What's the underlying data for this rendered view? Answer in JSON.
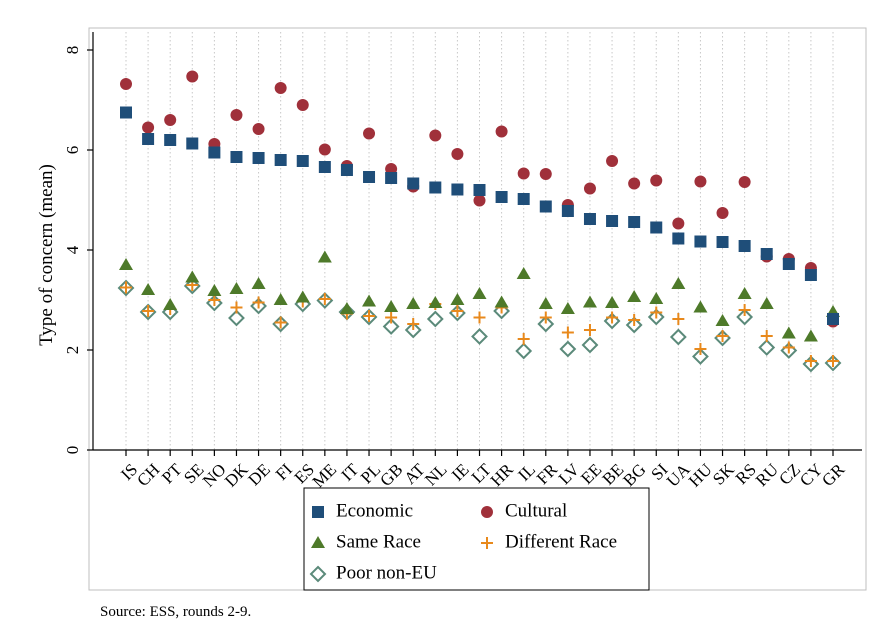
{
  "chart_data": {
    "type": "scatter",
    "ylabel": "Type of concern (mean)",
    "xlabel": "",
    "ylim": [
      0,
      8
    ],
    "yticks": [
      0,
      2,
      4,
      6,
      8
    ],
    "grid": "vertical dotted lines at each country",
    "legend_placement": "bottom",
    "categories": [
      "IS",
      "CH",
      "PT",
      "SE",
      "NO",
      "DK",
      "DE",
      "FI",
      "ES",
      "ME",
      "IT",
      "PL",
      "GB",
      "AT",
      "NL",
      "IE",
      "LT",
      "HR",
      "IL",
      "FR",
      "LV",
      "EE",
      "BE",
      "BG",
      "SI",
      "UA",
      "HU",
      "SK",
      "RS",
      "RU",
      "CZ",
      "CY",
      "GR"
    ],
    "series": [
      {
        "name": "Economic",
        "marker": "square",
        "color": "#1f4e79",
        "values": [
          6.75,
          6.22,
          6.2,
          6.13,
          5.95,
          5.86,
          5.84,
          5.8,
          5.78,
          5.66,
          5.6,
          5.46,
          5.44,
          5.33,
          5.25,
          5.21,
          5.2,
          5.06,
          5.02,
          4.87,
          4.78,
          4.62,
          4.58,
          4.56,
          4.45,
          4.23,
          4.17,
          4.16,
          4.08,
          3.92,
          3.72,
          3.5,
          2.62
        ]
      },
      {
        "name": "Cultural",
        "marker": "circle",
        "color": "#a0303a",
        "values": [
          7.32,
          6.45,
          6.6,
          7.47,
          6.12,
          6.7,
          6.42,
          7.24,
          6.9,
          6.01,
          5.68,
          6.33,
          5.62,
          5.27,
          6.29,
          5.92,
          4.99,
          6.37,
          5.53,
          5.52,
          4.9,
          5.23,
          5.78,
          5.33,
          5.39,
          4.53,
          5.37,
          4.74,
          5.36,
          3.87,
          3.82,
          3.64,
          2.57
        ]
      },
      {
        "name": "Same Race",
        "marker": "triangle",
        "color": "#4e7a2a",
        "values": [
          3.7,
          3.2,
          2.9,
          3.45,
          3.18,
          3.22,
          3.32,
          3.0,
          3.05,
          3.85,
          2.82,
          2.97,
          2.86,
          2.92,
          2.94,
          3.0,
          3.12,
          2.95,
          3.52,
          2.92,
          2.82,
          2.95,
          2.94,
          3.06,
          3.02,
          3.32,
          2.85,
          2.58,
          3.12,
          2.92,
          2.33,
          2.27,
          2.76
        ]
      },
      {
        "name": "Different Race",
        "marker": "plus",
        "color": "#e8891c",
        "values": [
          3.25,
          2.78,
          2.82,
          3.3,
          3.0,
          2.85,
          2.95,
          2.55,
          2.97,
          3.02,
          2.73,
          2.68,
          2.65,
          2.52,
          2.92,
          2.78,
          2.65,
          2.85,
          2.22,
          2.65,
          2.35,
          2.4,
          2.65,
          2.6,
          2.75,
          2.62,
          2.02,
          2.28,
          2.8,
          2.28,
          2.05,
          1.78,
          1.78
        ]
      },
      {
        "name": "Poor non-EU",
        "marker": "diamond-open",
        "color": "#5b8a7a",
        "values": [
          3.24,
          2.76,
          2.76,
          3.28,
          2.94,
          2.64,
          2.88,
          2.52,
          2.92,
          2.99,
          2.76,
          2.66,
          2.47,
          2.4,
          2.62,
          2.74,
          2.27,
          2.78,
          1.98,
          2.52,
          2.02,
          2.1,
          2.58,
          2.5,
          2.66,
          2.26,
          1.87,
          2.24,
          2.66,
          2.05,
          1.99,
          1.72,
          1.74
        ]
      }
    ],
    "source_note": "Source: ESS, rounds 2-9."
  }
}
